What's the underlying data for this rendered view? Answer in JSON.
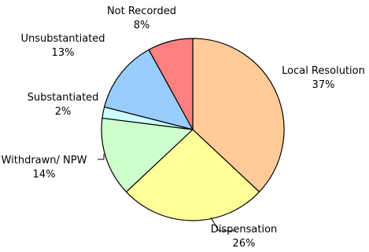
{
  "chart_data": {
    "type": "pie",
    "title": "",
    "start_angle_deg": 0,
    "direction": "clockwise",
    "slices": [
      {
        "label": "Local Resolution",
        "pct_label": "37%",
        "value": 37,
        "color": "#FFCC99"
      },
      {
        "label": "Dispensation",
        "pct_label": "26%",
        "value": 26,
        "color": "#FFFF99"
      },
      {
        "label": "Withdrawn/ NPW",
        "pct_label": "14%",
        "value": 14,
        "color": "#CCFFCC"
      },
      {
        "label": "Substantiated",
        "pct_label": "2%",
        "value": 2,
        "color": "#CCFFFF"
      },
      {
        "label": "Unsubstantiated",
        "pct_label": "13%",
        "value": 13,
        "color": "#99CCFF"
      },
      {
        "label": "Not Recorded",
        "pct_label": "8%",
        "value": 8,
        "color": "#FF8080"
      }
    ],
    "edge_color": "#000000",
    "legend": "none"
  }
}
